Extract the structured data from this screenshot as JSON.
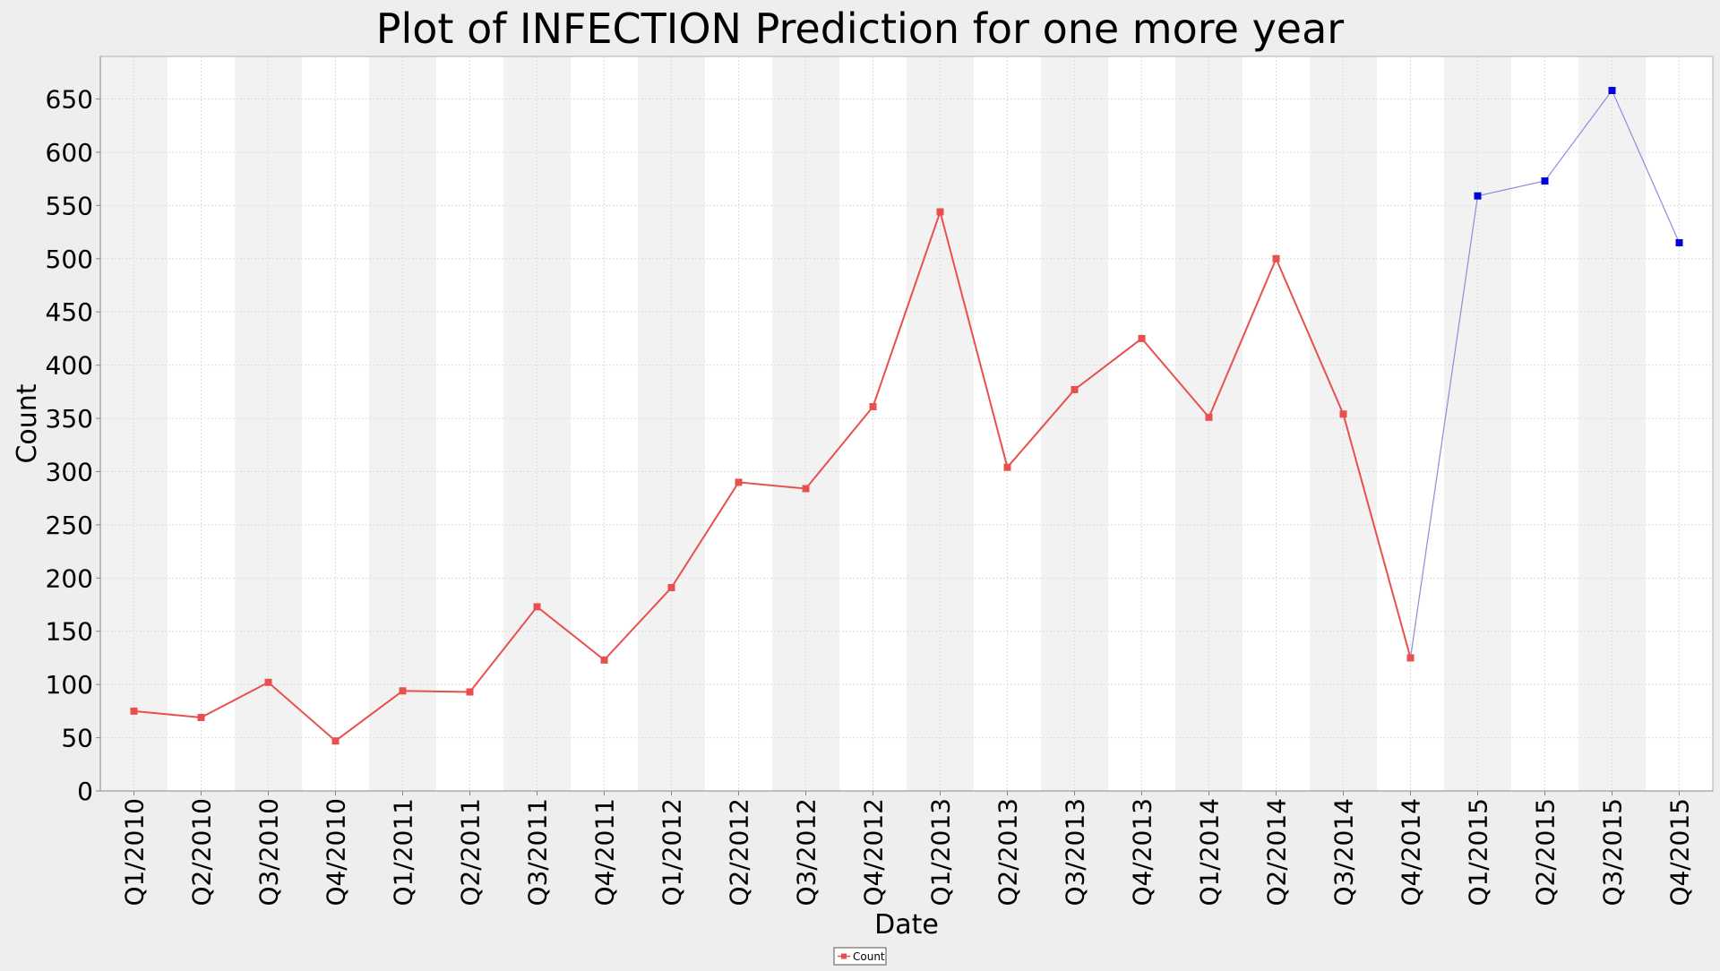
{
  "chart_data": {
    "type": "line",
    "title": "Plot of INFECTION Prediction for one more year",
    "xlabel": "Date",
    "ylabel": "Count",
    "ylim": [
      0,
      690
    ],
    "yticks": [
      0,
      50,
      100,
      150,
      200,
      250,
      300,
      350,
      400,
      450,
      500,
      550,
      600,
      650
    ],
    "categories": [
      "Q1/2010",
      "Q2/2010",
      "Q3/2010",
      "Q4/2010",
      "Q1/2011",
      "Q2/2011",
      "Q3/2011",
      "Q4/2011",
      "Q1/2012",
      "Q2/2012",
      "Q3/2012",
      "Q4/2012",
      "Q1/2013",
      "Q2/2013",
      "Q3/2013",
      "Q4/2013",
      "Q1/2014",
      "Q2/2014",
      "Q3/2014",
      "Q4/2014",
      "Q1/2015",
      "Q2/2015",
      "Q3/2015",
      "Q4/2015"
    ],
    "series": [
      {
        "name": "Count",
        "color": "#e8504e",
        "values": [
          75,
          69,
          102,
          47,
          94,
          93,
          173,
          123,
          191,
          290,
          284,
          361,
          544,
          304,
          377,
          425,
          351,
          500,
          354,
          125,
          null,
          null,
          null,
          null
        ]
      },
      {
        "color": "#0000dd",
        "line_color": "#8c8cdc",
        "values": [
          null,
          null,
          null,
          null,
          null,
          null,
          null,
          null,
          null,
          null,
          null,
          null,
          null,
          null,
          null,
          null,
          null,
          null,
          null,
          125,
          559,
          573,
          658,
          515
        ]
      }
    ],
    "grid": true,
    "legend_position": "bottom-center",
    "legend_entries": [
      "Count"
    ]
  }
}
